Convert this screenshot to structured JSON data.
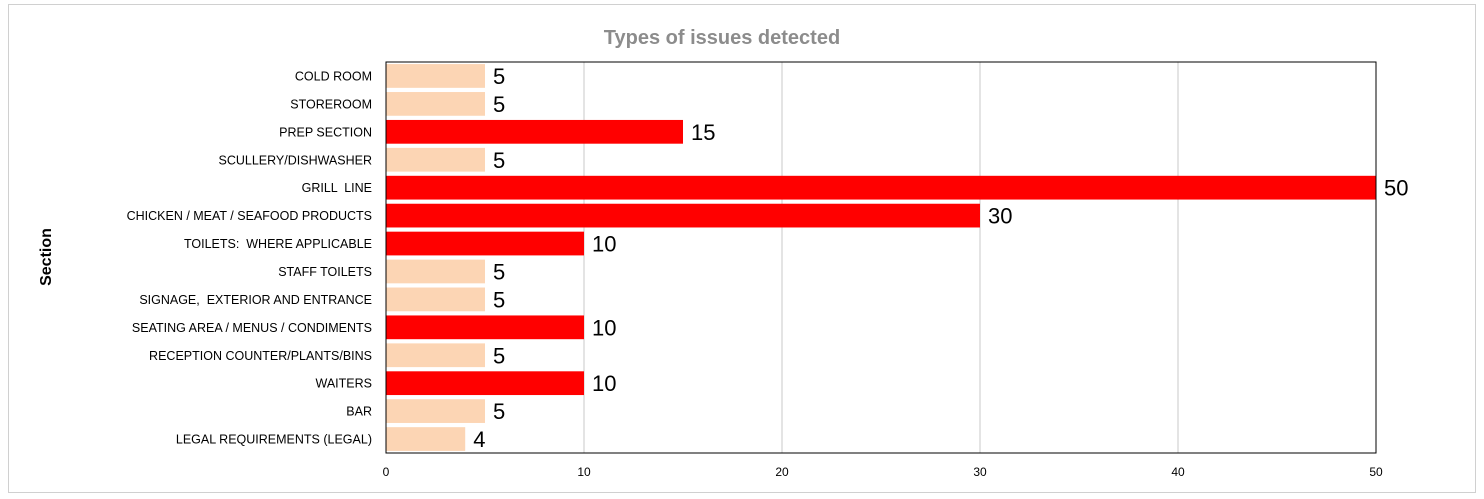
{
  "chart_data": {
    "type": "bar",
    "orientation": "horizontal",
    "title": "Types of issues detected",
    "xlabel": "",
    "ylabel": "Section",
    "categories": [
      "COLD ROOM",
      "STOREROOM",
      "PREP SECTION",
      "SCULLERY/DISHWASHER",
      "GRILL  LINE",
      "CHICKEN / MEAT / SEAFOOD PRODUCTS",
      "TOILETS:  WHERE APPLICABLE",
      "STAFF TOILETS",
      "SIGNAGE,  EXTERIOR AND ENTRANCE",
      "SEATING AREA / MENUS / CONDIMENTS",
      "RECEPTION COUNTER/PLANTS/BINS",
      "WAITERS",
      "BAR",
      "LEGAL REQUIREMENTS (LEGAL)"
    ],
    "values": [
      5,
      5,
      15,
      5,
      50,
      30,
      10,
      5,
      5,
      10,
      5,
      10,
      5,
      4
    ],
    "colors": [
      "#fcd5b4",
      "#fcd5b4",
      "#ff0000",
      "#fcd5b4",
      "#ff0000",
      "#ff0000",
      "#ff0000",
      "#fcd5b4",
      "#fcd5b4",
      "#ff0000",
      "#fcd5b4",
      "#ff0000",
      "#fcd5b4",
      "#fcd5b4"
    ],
    "xlim": [
      0,
      50
    ],
    "xticks": [
      0,
      10,
      20,
      30,
      40,
      50
    ],
    "grid": true,
    "legend": "none",
    "data_labels": true
  }
}
